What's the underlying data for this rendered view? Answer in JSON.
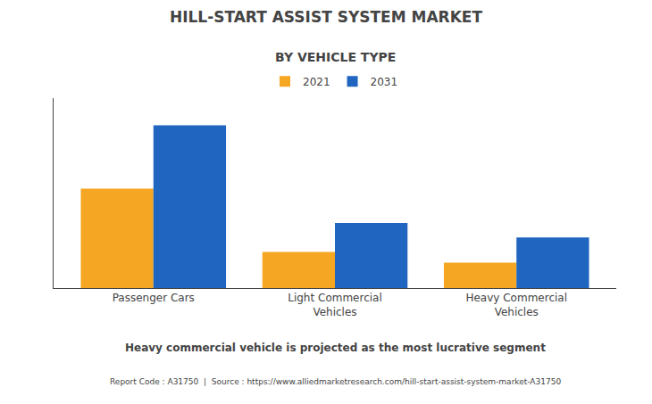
{
  "chart_data": {
    "type": "bar",
    "title": "HILL-START ASSIST SYSTEM MARKET",
    "subtitle": "BY VEHICLE TYPE",
    "categories": [
      "Passenger Cars",
      "Light Commercial\nVehicles",
      "Heavy Commercial\nVehicles"
    ],
    "series": [
      {
        "name": "2021",
        "color": "#F5A623",
        "values": [
          55,
          20,
          14
        ]
      },
      {
        "name": "2031",
        "color": "#2065C0",
        "values": [
          90,
          36,
          28
        ]
      }
    ],
    "ylim": [
      0,
      105
    ],
    "grid": false,
    "tick_labels": "x",
    "legend": "top",
    "annotations": [
      "Heavy commercial vehicle is projected as the most lucrative segment",
      "Report Code : A31750  |  Source : https://www.alliedmarketresearch.com/hill-start-assist-system-market-A31750"
    ]
  }
}
